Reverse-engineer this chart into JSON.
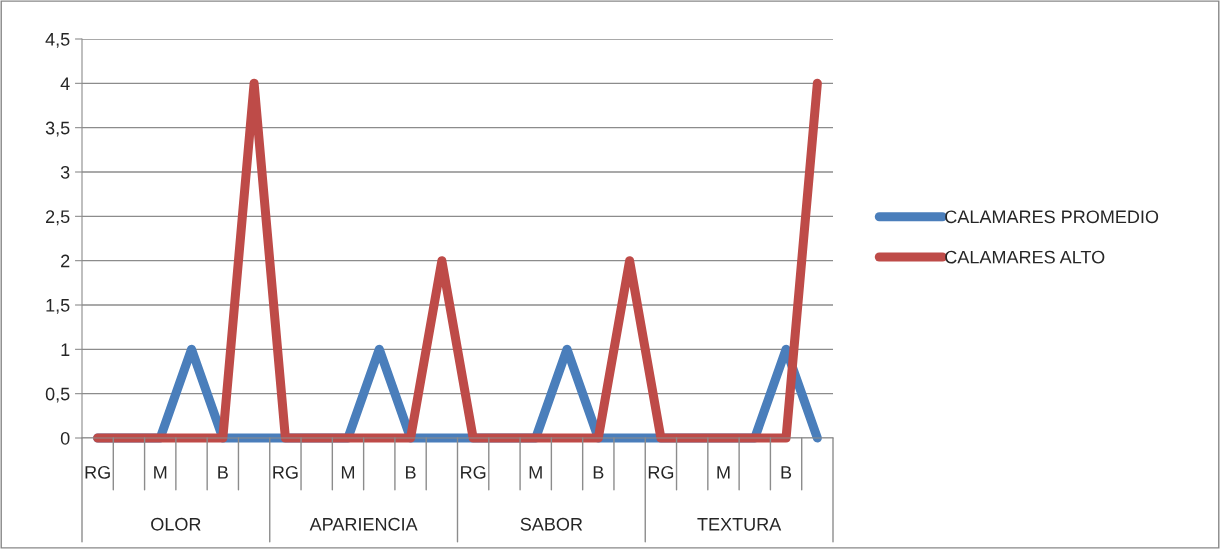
{
  "chart_data": {
    "type": "line",
    "categories": [
      "RG",
      null,
      "M",
      null,
      "B",
      null,
      "RG",
      null,
      "M",
      null,
      "B",
      null,
      "RG",
      null,
      "M",
      null,
      "B",
      null,
      "RG",
      null,
      "M",
      null,
      "B",
      null
    ],
    "annotations": [
      "OLOR",
      "APARIENCIA",
      "SABOR",
      "TEXTURA"
    ],
    "series": [
      {
        "name": "CALAMARES PROMEDIO",
        "color": "#4a7ebb",
        "values": [
          0,
          0,
          0,
          1,
          0,
          0,
          0,
          0,
          0,
          1,
          0,
          0,
          0,
          0,
          0,
          1,
          0,
          0,
          0,
          0,
          0,
          0,
          1,
          0
        ]
      },
      {
        "name": "CALAMARES ALTO",
        "color": "#be4b48",
        "values": [
          0,
          0,
          0,
          0,
          0,
          4,
          0,
          0,
          0,
          0,
          0,
          2,
          0,
          0,
          0,
          0,
          0,
          2,
          0,
          0,
          0,
          0,
          0,
          4
        ]
      }
    ],
    "ylim": [
      0,
      4.5
    ],
    "yticks": [
      0,
      {
        "value": 0.5,
        "label": "0,5"
      },
      1,
      {
        "value": 1.5,
        "label": "1,5"
      },
      2,
      {
        "value": 2.5,
        "label": "2,5"
      },
      3,
      {
        "value": 3.5,
        "label": "3,5"
      },
      4,
      {
        "value": 4.5,
        "label": "4,5"
      }
    ],
    "grid": "y",
    "legend": "right",
    "marker": "none",
    "line_style": "solid"
  }
}
